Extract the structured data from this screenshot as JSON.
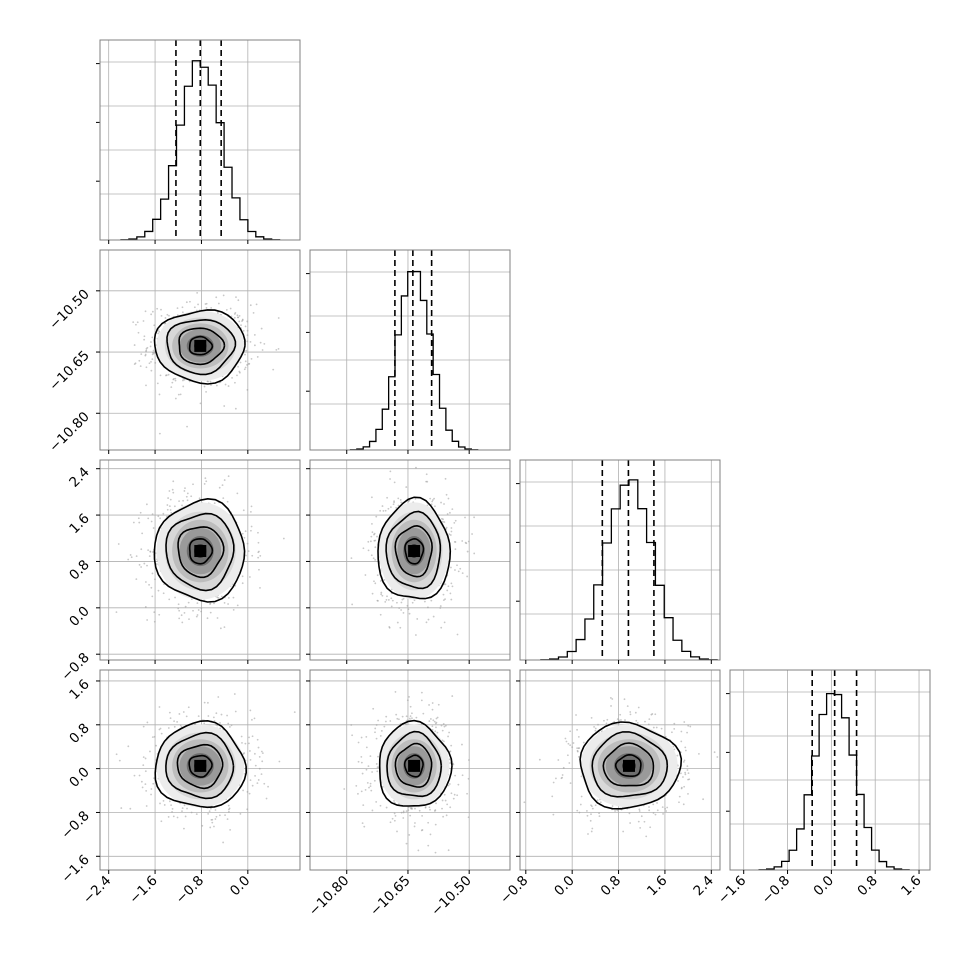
{
  "chart_data": {
    "type": "corner",
    "title": "",
    "colors": {
      "line": "#000000",
      "grid": "#b0b0b0",
      "frame": "#808080",
      "scatter": "#9a9a9a"
    },
    "quantiles_shown": [
      0.16,
      0.5,
      0.84
    ],
    "grid": true,
    "parameters": [
      {
        "range": [
          -2.55,
          0.9
        ],
        "ticks": [
          -2.4,
          -1.6,
          -0.8,
          0.0
        ],
        "tick_labels": [
          "−2.4",
          "−1.6",
          "−0.8",
          "0.0"
        ],
        "mean": -0.82,
        "sd": 0.36,
        "quantiles": [
          -1.24,
          -0.82,
          -0.46
        ]
      },
      {
        "range": [
          -10.89,
          -10.4
        ],
        "ticks": [
          -10.8,
          -10.65,
          -10.5
        ],
        "tick_labels": [
          "−10.80",
          "−10.65",
          "−10.50"
        ],
        "mean": -10.635,
        "sd": 0.041,
        "quantiles": [
          -10.682,
          -10.638,
          -10.592
        ]
      },
      {
        "range": [
          -0.9,
          2.55
        ],
        "ticks": [
          -0.8,
          0.0,
          0.8,
          1.6,
          2.4
        ],
        "tick_labels": [
          "−0.8",
          "0.0",
          "0.8",
          "1.6",
          "2.4"
        ],
        "mean": 0.98,
        "sd": 0.4,
        "quantiles": [
          0.52,
          0.97,
          1.41
        ]
      },
      {
        "range": [
          -1.85,
          1.8
        ],
        "ticks": [
          -1.6,
          -0.8,
          0.0,
          0.8,
          1.6
        ],
        "tick_labels": [
          "−1.6",
          "−0.8",
          "0.0",
          "0.8",
          "1.6"
        ],
        "mean": 0.05,
        "sd": 0.36,
        "quantiles": [
          -0.35,
          0.06,
          0.46
        ]
      }
    ],
    "hist_bins": 20,
    "hist_peak_counts": [
      1.0,
      1.0,
      1.0,
      1.0
    ],
    "contour_levels_sigma": [
      0.5,
      1.0,
      1.5,
      2.0
    ]
  }
}
